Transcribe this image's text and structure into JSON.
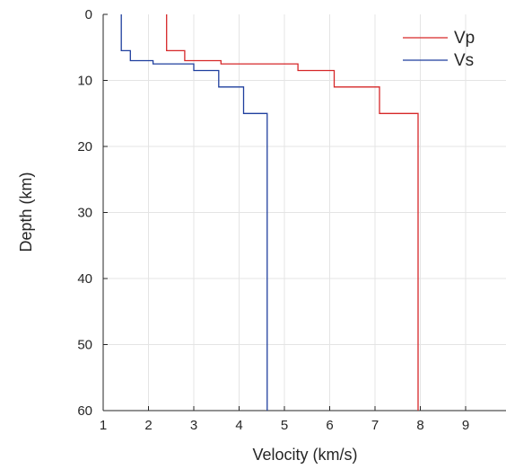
{
  "chart_data": {
    "type": "line",
    "title": "",
    "xlabel": "Velocity (km/s)",
    "ylabel": "Depth (km)",
    "xlim": [
      1,
      9.8
    ],
    "ylim": [
      0,
      60
    ],
    "y_reversed": true,
    "x_ticks": [
      1,
      2,
      3,
      4,
      5,
      6,
      7,
      8,
      9
    ],
    "y_ticks": [
      0,
      10,
      20,
      30,
      40,
      50,
      60
    ],
    "x_tick_labels": [
      "1",
      "2",
      "3",
      "4",
      "5",
      "6",
      "7",
      "8",
      "9"
    ],
    "y_tick_labels": [
      "0",
      "10",
      "20",
      "30",
      "40",
      "50",
      "60"
    ],
    "grid": true,
    "legend_position": "top-right",
    "series": [
      {
        "name": "Vp",
        "color": "#d62728",
        "step": "pre",
        "points": [
          {
            "x": 2.4,
            "y": 0
          },
          {
            "x": 2.4,
            "y": 5.5
          },
          {
            "x": 2.8,
            "y": 5.5
          },
          {
            "x": 2.8,
            "y": 7.0
          },
          {
            "x": 3.6,
            "y": 7.0
          },
          {
            "x": 3.6,
            "y": 7.5
          },
          {
            "x": 5.3,
            "y": 7.5
          },
          {
            "x": 5.3,
            "y": 8.5
          },
          {
            "x": 6.1,
            "y": 8.5
          },
          {
            "x": 6.1,
            "y": 11.0
          },
          {
            "x": 7.1,
            "y": 11.0
          },
          {
            "x": 7.1,
            "y": 15.0
          },
          {
            "x": 7.95,
            "y": 15.0
          },
          {
            "x": 7.95,
            "y": 60
          }
        ]
      },
      {
        "name": "Vs",
        "color": "#1f3f9e",
        "step": "pre",
        "points": [
          {
            "x": 1.4,
            "y": 0
          },
          {
            "x": 1.4,
            "y": 5.5
          },
          {
            "x": 1.6,
            "y": 5.5
          },
          {
            "x": 1.6,
            "y": 7.0
          },
          {
            "x": 2.1,
            "y": 7.0
          },
          {
            "x": 2.1,
            "y": 7.5
          },
          {
            "x": 3.0,
            "y": 7.5
          },
          {
            "x": 3.0,
            "y": 8.5
          },
          {
            "x": 3.55,
            "y": 8.5
          },
          {
            "x": 3.55,
            "y": 11.0
          },
          {
            "x": 4.1,
            "y": 11.0
          },
          {
            "x": 4.1,
            "y": 15.0
          },
          {
            "x": 4.62,
            "y": 15.0
          },
          {
            "x": 4.62,
            "y": 60
          }
        ]
      }
    ]
  }
}
